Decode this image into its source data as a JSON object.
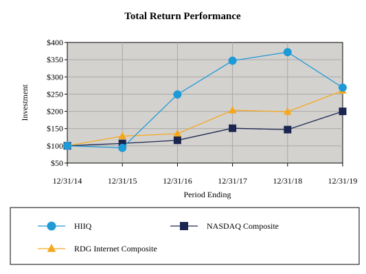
{
  "chart_data": {
    "type": "line",
    "title": "Total Return Performance",
    "xlabel": "Period Ending",
    "ylabel": "Investment",
    "categories": [
      "12/31/14",
      "12/31/15",
      "12/31/16",
      "12/31/17",
      "12/31/18",
      "12/31/19"
    ],
    "yticks": [
      "$50",
      "$100",
      "$150",
      "$200",
      "$250",
      "$300",
      "$350",
      "$400"
    ],
    "ylim": [
      50,
      400
    ],
    "grid": true,
    "legend_position": "bottom",
    "series": [
      {
        "name": "HIIQ",
        "values": [
          100,
          94,
          249,
          347,
          372,
          269
        ],
        "color": "#1e9ad6",
        "marker": "circle"
      },
      {
        "name": "NASDAQ Composite",
        "values": [
          100,
          107,
          116,
          151,
          147,
          200
        ],
        "color": "#1a2650",
        "marker": "square"
      },
      {
        "name": "RDG Internet Composite",
        "values": [
          100,
          128,
          135,
          203,
          199,
          260
        ],
        "color": "#f5a81c",
        "marker": "triangle"
      }
    ],
    "plot_background": "#d4d2cf",
    "grid_color": "#a8a8a8"
  }
}
